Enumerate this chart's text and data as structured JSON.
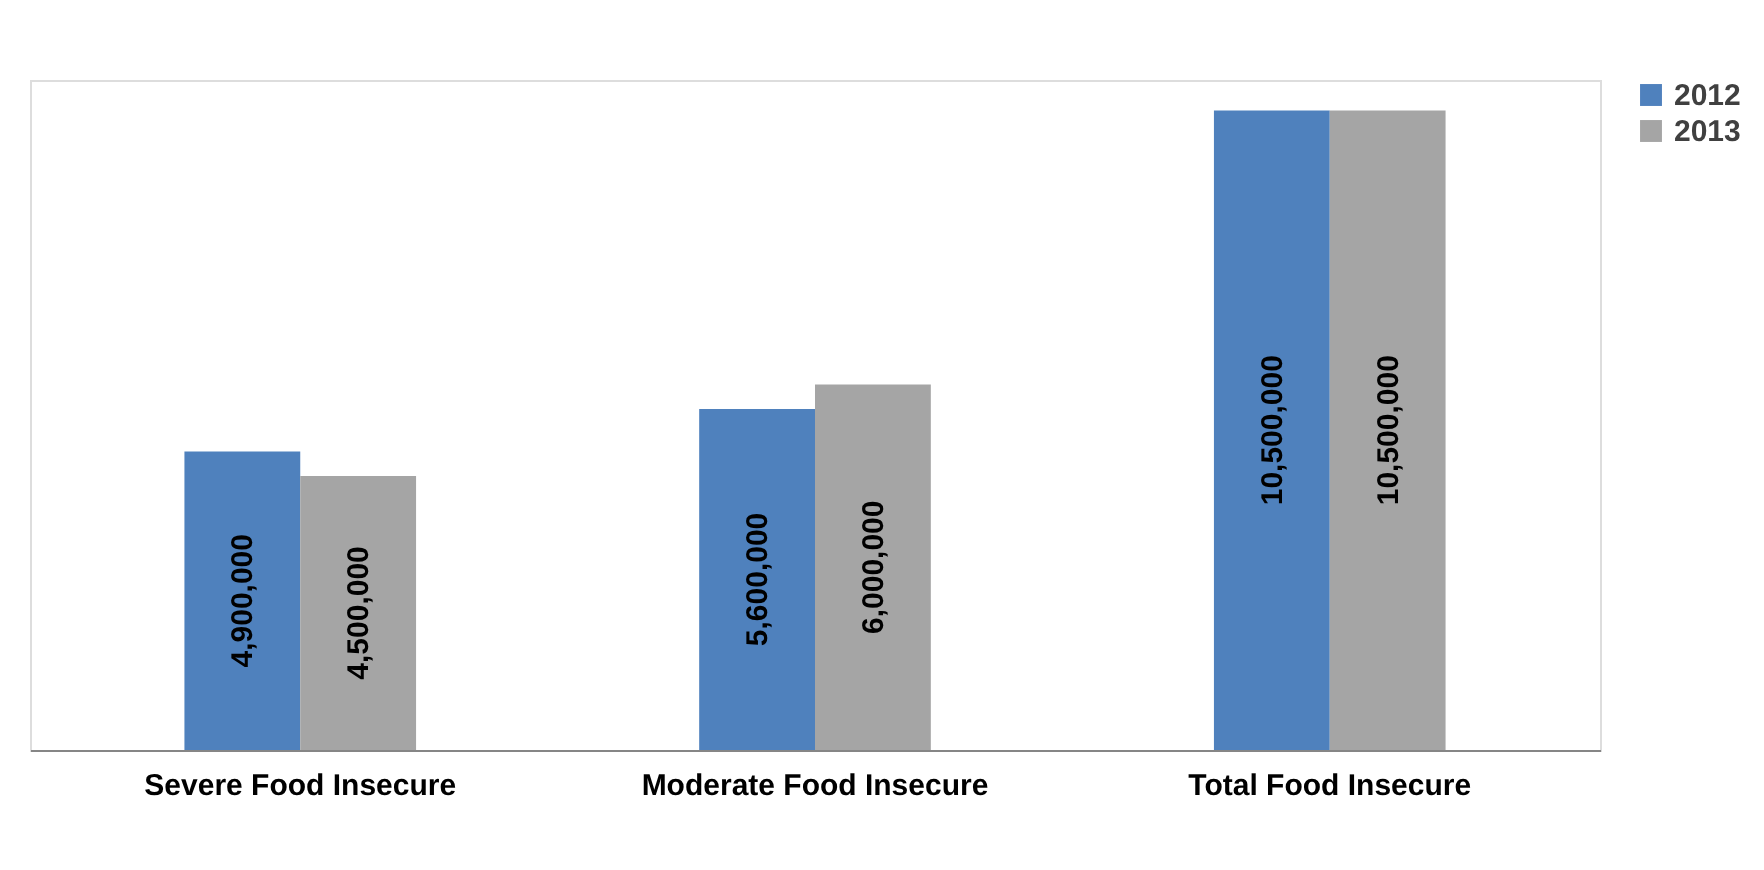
{
  "chart_data": {
    "type": "bar",
    "categories": [
      "Severe Food Insecure",
      "Moderate Food Insecure",
      "Total Food Insecure"
    ],
    "series": [
      {
        "name": "2012",
        "color": "#4f81bd",
        "values": [
          4900000,
          5600000,
          10500000
        ],
        "value_labels": [
          "4,900,000",
          "5,600,000",
          "10,500,000"
        ]
      },
      {
        "name": "2013",
        "color": "#a5a5a5",
        "values": [
          4500000,
          6000000,
          10500000
        ],
        "value_labels": [
          "4,500,000",
          "6,000,000",
          "10,500,000"
        ]
      }
    ],
    "legend": "right",
    "grid": false,
    "tick_labels": "x"
  }
}
